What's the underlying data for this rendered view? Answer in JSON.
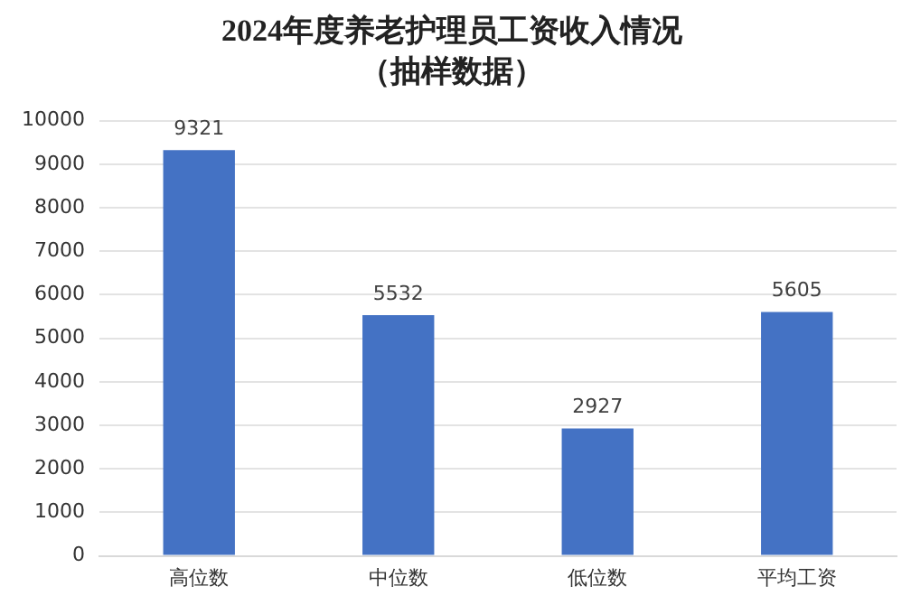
{
  "chart_data": {
    "type": "bar",
    "title": "2024年度养老护理员工资收入情况",
    "subtitle": "（抽样数据）",
    "categories": [
      "高位数",
      "中位数",
      "低位数",
      "平均工资"
    ],
    "values": [
      9321,
      5532,
      2927,
      5605
    ],
    "color": "#4472c4",
    "ylim": [
      0,
      10000
    ],
    "yticks": [
      0,
      1000,
      2000,
      3000,
      4000,
      5000,
      6000,
      7000,
      8000,
      9000,
      10000
    ],
    "grid": "y",
    "data_labels": true,
    "legend": false
  }
}
